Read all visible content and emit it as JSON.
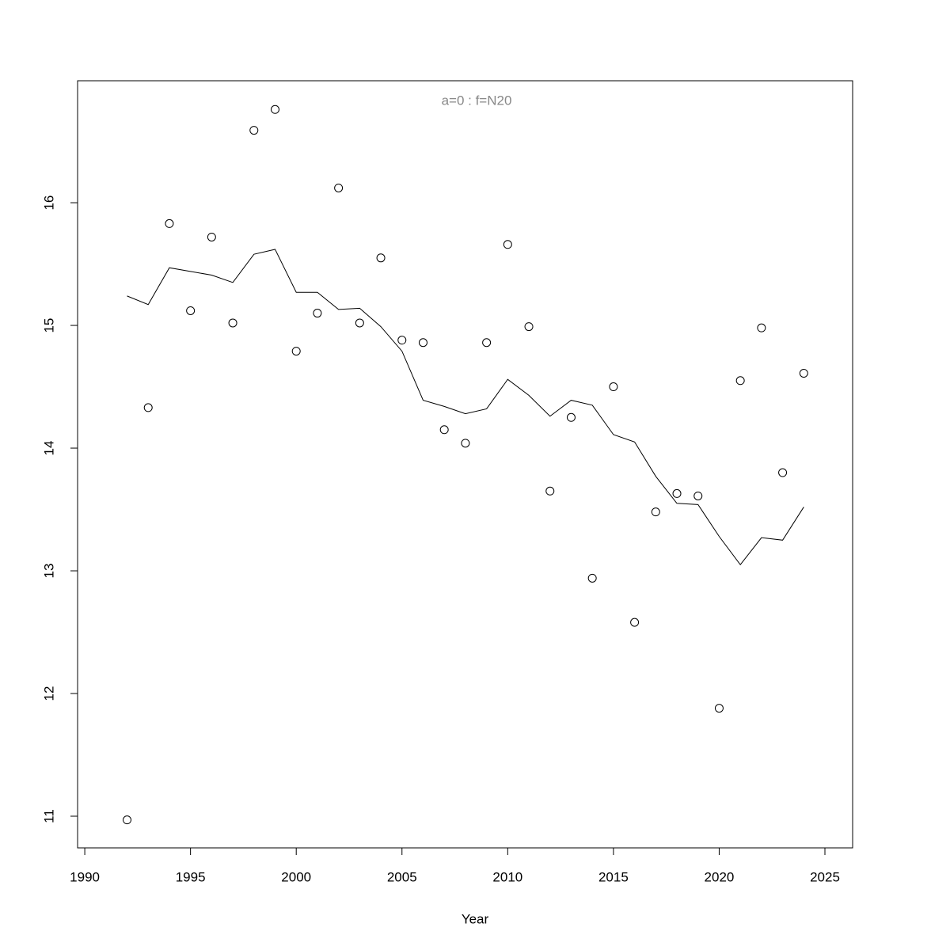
{
  "chart_data": {
    "type": "scatter",
    "title": "a=0  :  f=N20",
    "x_label": "Year",
    "x": [
      1992,
      1993,
      1994,
      1995,
      1996,
      1997,
      1998,
      1999,
      2000,
      2001,
      2002,
      2003,
      2004,
      2005,
      2006,
      2007,
      2008,
      2009,
      2010,
      2011,
      2012,
      2013,
      2014,
      2015,
      2016,
      2017,
      2018,
      2019,
      2020,
      2021,
      2022,
      2023,
      2024
    ],
    "series": [
      {
        "style": "points",
        "color": "#000000",
        "values": [
          10.97,
          14.33,
          15.83,
          15.12,
          15.72,
          15.02,
          16.59,
          16.76,
          14.79,
          15.1,
          16.12,
          15.02,
          15.55,
          14.88,
          14.86,
          14.15,
          14.04,
          14.86,
          15.66,
          14.99,
          13.65,
          14.25,
          12.94,
          14.5,
          12.58,
          13.48,
          13.63,
          13.61,
          11.88,
          14.55,
          14.98,
          13.8,
          14.61
        ]
      },
      {
        "style": "line",
        "color": "#000000",
        "values": [
          15.24,
          15.17,
          15.47,
          15.44,
          15.41,
          15.35,
          15.58,
          15.62,
          15.27,
          15.27,
          15.13,
          15.14,
          14.99,
          14.79,
          14.39,
          14.34,
          14.28,
          14.32,
          14.56,
          14.43,
          14.26,
          14.39,
          14.35,
          14.11,
          14.05,
          13.77,
          13.55,
          13.54,
          13.28,
          13.05,
          13.27,
          13.25,
          13.52
        ]
      }
    ],
    "xlim": [
      1989.66,
      2026.31
    ],
    "ylim": [
      10.742,
      16.994
    ],
    "xticks": [
      1990,
      1995,
      2000,
      2005,
      2010,
      2015,
      2020,
      2025
    ],
    "yticks": [
      11,
      12,
      13,
      14,
      15,
      16
    ],
    "title_color": "#888888"
  }
}
